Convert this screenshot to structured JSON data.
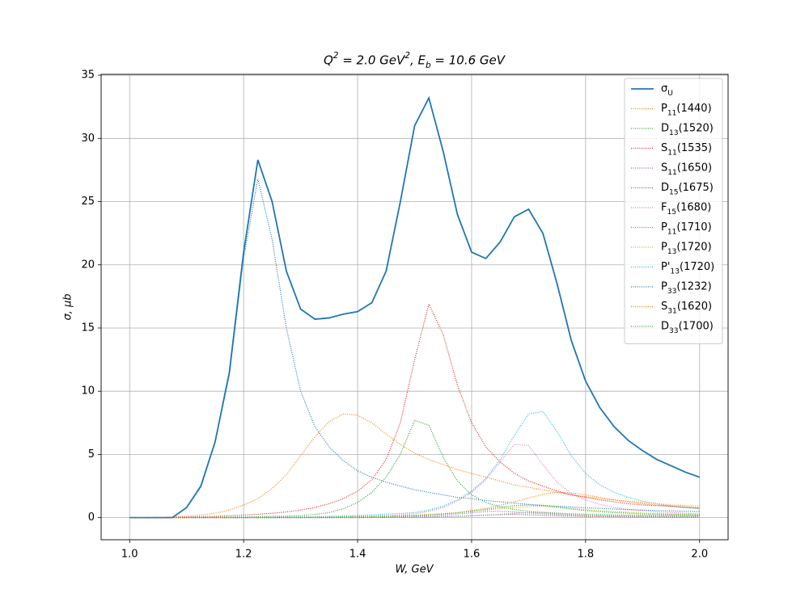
{
  "chart_data": {
    "type": "line",
    "title": "Q^{2} = 2.0 GeV^{2},  E_{b} = 10.6 GeV",
    "xlabel": "W, GeV",
    "ylabel": "σ, μb",
    "grid": true,
    "legend": "upper right",
    "xlim": [
      0.95,
      2.05
    ],
    "ylim": [
      -1.75,
      35.07
    ],
    "xticks": [
      {
        "value": 1.0,
        "label": "1.0"
      },
      {
        "value": 1.2,
        "label": "1.2"
      },
      {
        "value": 1.4,
        "label": "1.4"
      },
      {
        "value": 1.6,
        "label": "1.6"
      },
      {
        "value": 1.8,
        "label": "1.8"
      },
      {
        "value": 2.0,
        "label": "2.0"
      }
    ],
    "yticks": [
      0,
      5,
      10,
      15,
      20,
      25,
      30,
      35
    ],
    "x": [
      1.0,
      1.025,
      1.05,
      1.075,
      1.1,
      1.125,
      1.15,
      1.175,
      1.2,
      1.225,
      1.25,
      1.275,
      1.3,
      1.325,
      1.35,
      1.375,
      1.4,
      1.425,
      1.45,
      1.475,
      1.5,
      1.525,
      1.55,
      1.575,
      1.6,
      1.625,
      1.65,
      1.675,
      1.7,
      1.725,
      1.75,
      1.775,
      1.8,
      1.825,
      1.85,
      1.875,
      1.9,
      1.925,
      1.95,
      1.975,
      2.0
    ],
    "series": [
      {
        "name": "σ_{U}",
        "color": "#1f77b4",
        "linestyle": "solid",
        "values": [
          0,
          0,
          0,
          0,
          0.8,
          2.5,
          6,
          11.5,
          21,
          28.3,
          25,
          19.5,
          16.5,
          15.7,
          15.8,
          16.1,
          16.3,
          17.0,
          19.5,
          25,
          31,
          33.2,
          29,
          24,
          21.0,
          20.5,
          21.8,
          23.8,
          24.4,
          22.5,
          18.5,
          14,
          10.8,
          8.7,
          7.2,
          6.1,
          5.3,
          4.6,
          4.1,
          3.6,
          3.2
        ]
      },
      {
        "name": "P_{11}(1440)",
        "color": "#ff7f0e",
        "linestyle": "dotted",
        "values": [
          0,
          0,
          0.02,
          0.05,
          0.1,
          0.2,
          0.35,
          0.6,
          1.0,
          1.5,
          2.3,
          3.4,
          4.9,
          6.4,
          7.6,
          8.2,
          8.1,
          7.5,
          6.6,
          5.8,
          5.1,
          4.6,
          4.2,
          3.8,
          3.5,
          3.2,
          2.9,
          2.6,
          2.4,
          2.2,
          2.0,
          1.8,
          1.65,
          1.5,
          1.4,
          1.3,
          1.2,
          1.1,
          1.0,
          0.95,
          0.9
        ]
      },
      {
        "name": "D_{13}(1520)",
        "color": "#2ca02c",
        "linestyle": "dotted",
        "values": [
          0,
          0,
          0,
          0.01,
          0.02,
          0.03,
          0.04,
          0.05,
          0.06,
          0.08,
          0.1,
          0.12,
          0.15,
          0.25,
          0.4,
          0.7,
          1.2,
          2.0,
          3.2,
          5.0,
          7.7,
          7.3,
          4.8,
          2.9,
          1.8,
          1.2,
          0.85,
          0.65,
          0.5,
          0.42,
          0.36,
          0.3,
          0.27,
          0.24,
          0.22,
          0.2,
          0.19,
          0.18,
          0.17,
          0.16,
          0.15
        ]
      },
      {
        "name": "S_{11}(1535)",
        "color": "#d62728",
        "linestyle": "dotted",
        "values": [
          0,
          0,
          0.01,
          0.03,
          0.05,
          0.07,
          0.1,
          0.15,
          0.2,
          0.27,
          0.35,
          0.45,
          0.6,
          0.8,
          1.1,
          1.5,
          2.1,
          3.0,
          4.6,
          7.5,
          12.5,
          16.9,
          14.5,
          10.5,
          7.5,
          5.6,
          4.4,
          3.5,
          2.9,
          2.5,
          2.1,
          1.8,
          1.6,
          1.4,
          1.25,
          1.1,
          1.0,
          0.95,
          0.9,
          0.82,
          0.75
        ]
      },
      {
        "name": "S_{11}(1650)",
        "color": "#9467bd",
        "linestyle": "dotted",
        "values": [
          0,
          0,
          0,
          0,
          0,
          0,
          0,
          0,
          0,
          0,
          0.01,
          0.01,
          0.01,
          0.01,
          0.01,
          0.02,
          0.02,
          0.03,
          0.05,
          0.07,
          0.1,
          0.14,
          0.2,
          0.28,
          0.38,
          0.47,
          0.5,
          0.45,
          0.37,
          0.3,
          0.24,
          0.2,
          0.17,
          0.15,
          0.13,
          0.12,
          0.11,
          0.1,
          0.09,
          0.08,
          0.08
        ]
      },
      {
        "name": "D_{15}(1675)",
        "color": "#8c564b",
        "linestyle": "dotted",
        "values": [
          0,
          0,
          0,
          0,
          0,
          0,
          0,
          0,
          0,
          0,
          0,
          0,
          0,
          0,
          0,
          0,
          0.01,
          0.01,
          0.02,
          0.03,
          0.04,
          0.06,
          0.08,
          0.11,
          0.15,
          0.2,
          0.24,
          0.25,
          0.22,
          0.18,
          0.14,
          0.11,
          0.09,
          0.08,
          0.07,
          0.06,
          0.05,
          0.05,
          0.04,
          0.04,
          0.04
        ]
      },
      {
        "name": "F_{15}(1680)",
        "color": "#e377c2",
        "linestyle": "dotted",
        "values": [
          0,
          0,
          0,
          0,
          0,
          0,
          0,
          0,
          0.01,
          0.01,
          0.02,
          0.02,
          0.03,
          0.04,
          0.05,
          0.07,
          0.09,
          0.12,
          0.16,
          0.22,
          0.3,
          0.5,
          0.8,
          1.3,
          2.0,
          3.0,
          4.4,
          5.8,
          5.7,
          4.2,
          2.8,
          1.9,
          1.4,
          1.05,
          0.8,
          0.65,
          0.55,
          0.45,
          0.4,
          0.35,
          0.3
        ]
      },
      {
        "name": "P_{11}(1710)",
        "color": "#7f7f7f",
        "linestyle": "dotted",
        "values": [
          0,
          0,
          0,
          0,
          0,
          0,
          0,
          0,
          0,
          0,
          0,
          0,
          0,
          0.01,
          0.01,
          0.01,
          0.01,
          0.01,
          0.02,
          0.03,
          0.04,
          0.05,
          0.07,
          0.1,
          0.14,
          0.19,
          0.26,
          0.34,
          0.4,
          0.38,
          0.3,
          0.22,
          0.17,
          0.14,
          0.12,
          0.1,
          0.09,
          0.08,
          0.07,
          0.07,
          0.06
        ]
      },
      {
        "name": "P_{13}(1720)",
        "color": "#bcbd22",
        "linestyle": "dotted",
        "values": [
          0,
          0,
          0,
          0,
          0,
          0,
          0,
          0.01,
          0.01,
          0.01,
          0.02,
          0.02,
          0.03,
          0.03,
          0.04,
          0.04,
          0.05,
          0.07,
          0.1,
          0.14,
          0.19,
          0.25,
          0.32,
          0.4,
          0.5,
          0.6,
          0.7,
          0.8,
          0.87,
          0.9,
          0.85,
          0.75,
          0.64,
          0.55,
          0.48,
          0.42,
          0.37,
          0.33,
          0.3,
          0.27,
          0.25
        ]
      },
      {
        "name": "P'_{13}(1720)",
        "color": "#17becf",
        "linestyle": "dotted",
        "values": [
          0,
          0,
          0,
          0,
          0.01,
          0.01,
          0.01,
          0.02,
          0.02,
          0.03,
          0.03,
          0.04,
          0.05,
          0.07,
          0.1,
          0.13,
          0.17,
          0.22,
          0.28,
          0.33,
          0.4,
          0.6,
          0.9,
          1.4,
          2.1,
          3.1,
          4.6,
          6.5,
          8.2,
          8.4,
          6.8,
          4.9,
          3.5,
          2.6,
          2.0,
          1.6,
          1.3,
          1.1,
          0.9,
          0.8,
          0.7
        ]
      },
      {
        "name": "P_{33}(1232)",
        "color": "#1f77b4",
        "linestyle": "dotted",
        "values": [
          0,
          0,
          0,
          0,
          0.8,
          2.4,
          6,
          11.3,
          20.5,
          26.8,
          22,
          15,
          10,
          7.2,
          5.6,
          4.5,
          3.7,
          3.2,
          2.8,
          2.5,
          2.2,
          2.0,
          1.8,
          1.6,
          1.5,
          1.35,
          1.25,
          1.15,
          1.05,
          0.97,
          0.9,
          0.84,
          0.78,
          0.73,
          0.68,
          0.64,
          0.6,
          0.56,
          0.53,
          0.5,
          0.47
        ]
      },
      {
        "name": "S_{31}(1620)",
        "color": "#ff7f0e",
        "linestyle": "dotted",
        "values": [
          0,
          0,
          0,
          0,
          0,
          0,
          0,
          0,
          0,
          0.01,
          0.01,
          0.02,
          0.02,
          0.03,
          0.04,
          0.05,
          0.06,
          0.08,
          0.1,
          0.13,
          0.17,
          0.22,
          0.3,
          0.4,
          0.55,
          0.75,
          0.98,
          1.25,
          1.55,
          1.85,
          2.0,
          1.95,
          1.8,
          1.6,
          1.4,
          1.25,
          1.1,
          1.0,
          0.9,
          0.82,
          0.75
        ]
      },
      {
        "name": "D_{33}(1700)",
        "color": "#2ca02c",
        "linestyle": "dotted",
        "values": [
          0,
          0,
          0,
          0,
          0,
          0,
          0,
          0,
          0.01,
          0.01,
          0.01,
          0.02,
          0.02,
          0.03,
          0.04,
          0.05,
          0.06,
          0.08,
          0.1,
          0.13,
          0.17,
          0.22,
          0.29,
          0.38,
          0.5,
          0.65,
          0.82,
          0.95,
          1.0,
          0.95,
          0.82,
          0.68,
          0.56,
          0.47,
          0.4,
          0.35,
          0.3,
          0.27,
          0.24,
          0.22,
          0.2
        ]
      }
    ]
  }
}
